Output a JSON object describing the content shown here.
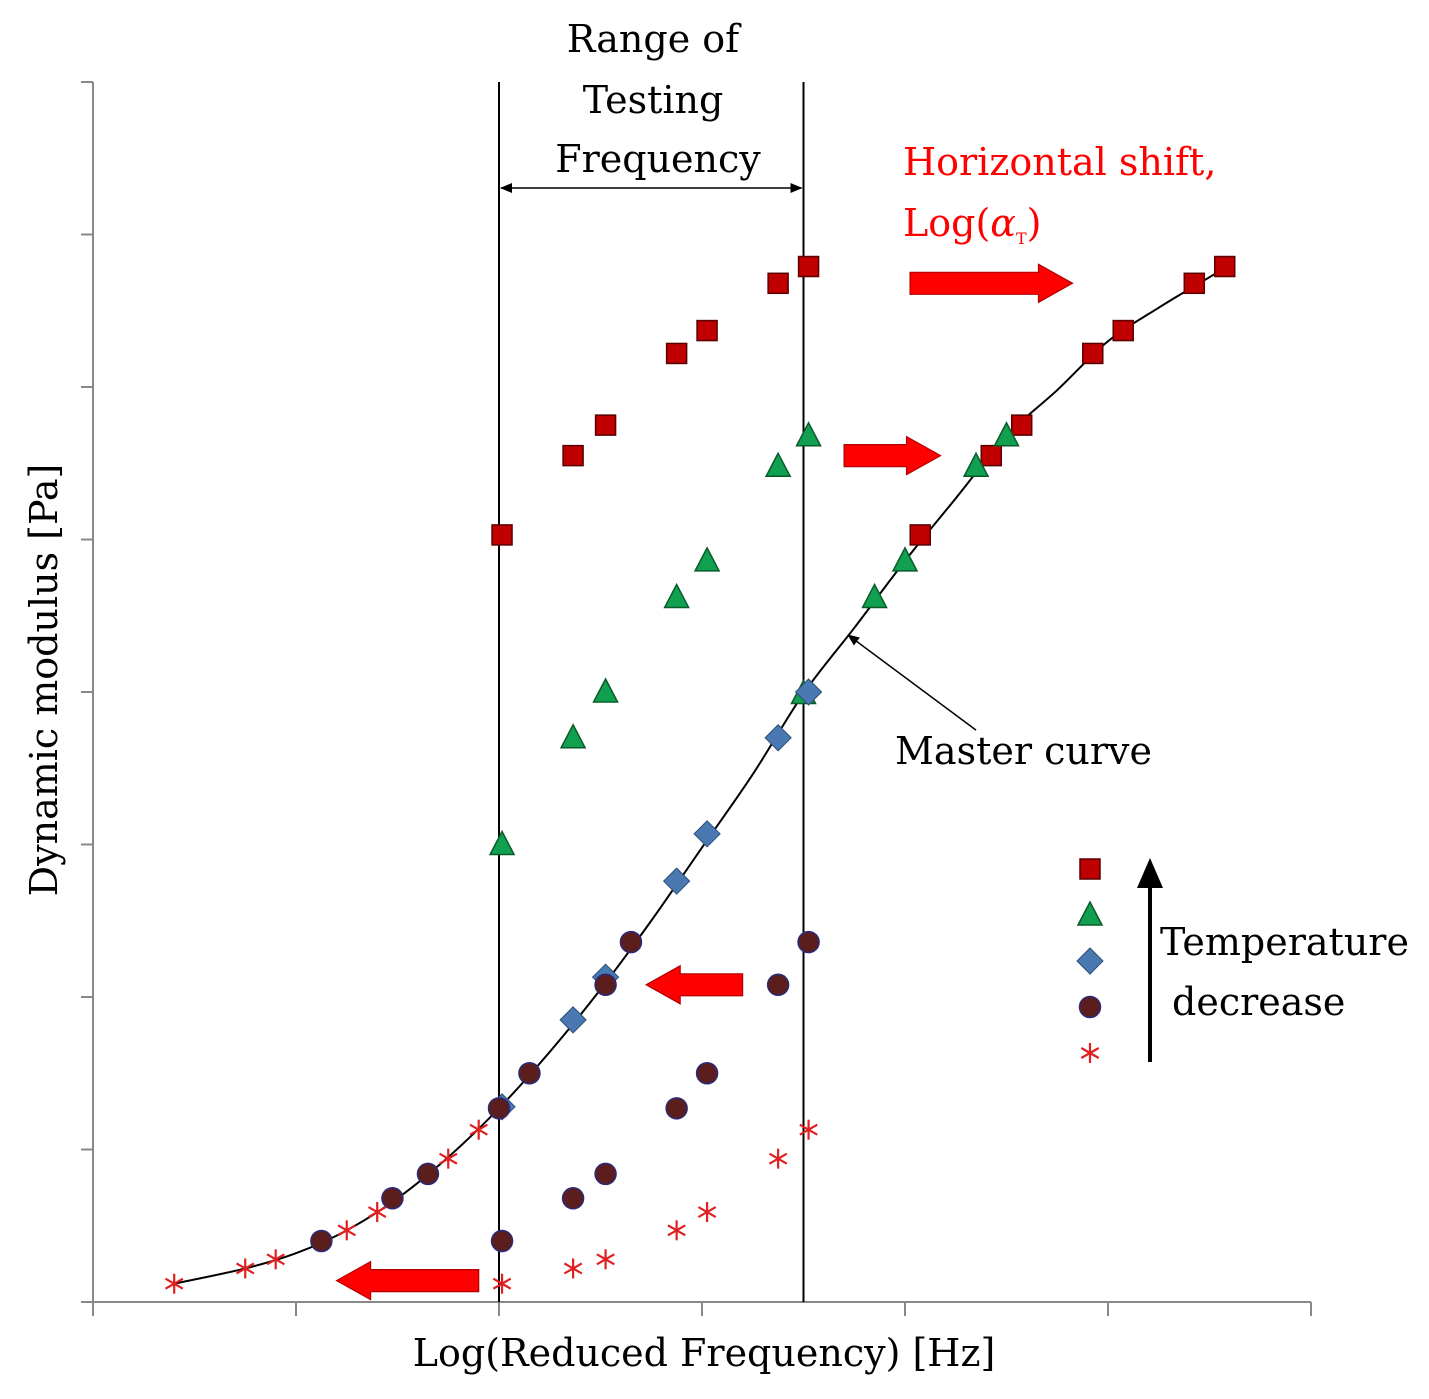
{
  "chart_data": {
    "type": "scatter",
    "title": "",
    "xlabel": "Log(Reduced Frequency) [Hz]",
    "ylabel": "Dynamic modulus [Pa]",
    "xlim": [
      0,
      12
    ],
    "ylim": [
      0,
      8
    ],
    "x_tick_count": 6,
    "y_tick_count": 8,
    "testing_range": {
      "x_min": 4,
      "x_max": 7,
      "label_lines": [
        "Range of",
        "Testing",
        "Frequency"
      ]
    },
    "series": [
      {
        "name": "square",
        "color": "#c00000",
        "marker": "square",
        "raw": [
          [
            4.03,
            5.03
          ],
          [
            4.73,
            5.55
          ],
          [
            5.05,
            5.75
          ],
          [
            5.75,
            6.22
          ],
          [
            6.05,
            6.37
          ],
          [
            6.75,
            6.68
          ],
          [
            7.05,
            6.79
          ]
        ],
        "shifted": [
          [
            8.15,
            5.03
          ],
          [
            8.85,
            5.55
          ],
          [
            9.15,
            5.75
          ],
          [
            9.85,
            6.22
          ],
          [
            10.15,
            6.37
          ],
          [
            10.85,
            6.68
          ],
          [
            11.15,
            6.79
          ]
        ]
      },
      {
        "name": "triangle",
        "color": "#10a050",
        "marker": "triangle",
        "raw": [
          [
            4.03,
            3.0
          ],
          [
            4.73,
            3.7
          ],
          [
            5.05,
            4.0
          ],
          [
            5.75,
            4.62
          ],
          [
            6.05,
            4.86
          ],
          [
            6.75,
            5.48
          ],
          [
            7.05,
            5.68
          ]
        ],
        "shifted": [
          [
            7.0,
            3.99
          ],
          [
            7.7,
            4.62
          ],
          [
            8.0,
            4.86
          ],
          [
            8.7,
            5.48
          ],
          [
            9.0,
            5.68
          ]
        ]
      },
      {
        "name": "diamond",
        "color": "#4a78b0",
        "marker": "diamond",
        "shifted": [
          [
            4.03,
            1.28
          ],
          [
            4.73,
            1.85
          ],
          [
            5.05,
            2.13
          ],
          [
            5.75,
            2.76
          ],
          [
            6.05,
            3.07
          ],
          [
            6.75,
            3.7
          ],
          [
            7.05,
            4.0
          ]
        ]
      },
      {
        "name": "circle",
        "color": "#5c1d1d",
        "marker": "circle",
        "raw": [
          [
            4.03,
            0.4
          ],
          [
            4.73,
            0.68
          ],
          [
            5.05,
            0.84
          ],
          [
            5.75,
            1.27
          ],
          [
            6.05,
            1.5
          ],
          [
            6.75,
            2.08
          ],
          [
            7.05,
            2.36
          ]
        ],
        "shifted": [
          [
            2.25,
            0.4
          ],
          [
            2.95,
            0.68
          ],
          [
            3.3,
            0.84
          ],
          [
            4.0,
            1.27
          ],
          [
            4.3,
            1.5
          ],
          [
            5.05,
            2.08
          ],
          [
            5.3,
            2.36
          ]
        ]
      },
      {
        "name": "asterisk",
        "color": "#e02020",
        "marker": "asterisk",
        "raw": [
          [
            4.03,
            0.12
          ],
          [
            4.73,
            0.22
          ],
          [
            5.05,
            0.28
          ],
          [
            5.75,
            0.47
          ],
          [
            6.05,
            0.59
          ],
          [
            6.75,
            0.94
          ],
          [
            7.05,
            1.13
          ]
        ],
        "shifted": [
          [
            0.8,
            0.12
          ],
          [
            1.5,
            0.22
          ],
          [
            1.8,
            0.28
          ],
          [
            2.5,
            0.47
          ],
          [
            2.8,
            0.59
          ],
          [
            3.5,
            0.94
          ],
          [
            3.8,
            1.13
          ]
        ]
      }
    ],
    "master_curve": [
      [
        0.8,
        0.12
      ],
      [
        1.5,
        0.22
      ],
      [
        2.0,
        0.32
      ],
      [
        2.5,
        0.47
      ],
      [
        3.0,
        0.68
      ],
      [
        3.5,
        0.95
      ],
      [
        4.0,
        1.27
      ],
      [
        4.5,
        1.64
      ],
      [
        5.0,
        2.05
      ],
      [
        5.5,
        2.5
      ],
      [
        6.0,
        2.98
      ],
      [
        6.5,
        3.46
      ],
      [
        7.0,
        3.99
      ],
      [
        7.5,
        4.42
      ],
      [
        8.0,
        4.86
      ],
      [
        8.5,
        5.27
      ],
      [
        9.0,
        5.68
      ],
      [
        9.5,
        5.98
      ],
      [
        10.0,
        6.3
      ],
      [
        10.5,
        6.52
      ],
      [
        11.0,
        6.72
      ],
      [
        11.2,
        6.8
      ]
    ],
    "annotations": {
      "shift_label_line1": "Horizontal shift,",
      "shift_label_line2_prefix": "Log(",
      "shift_label_symbol": "α",
      "shift_label_subscript": "T",
      "shift_label_suffix": ")",
      "master_curve_label": "Master curve",
      "temperature_label_line1": "Temperature",
      "temperature_label_line2": "decrease"
    },
    "shift_arrows": [
      {
        "direction": "right",
        "x_from": 8.05,
        "x_to": 9.65,
        "y": 6.68
      },
      {
        "direction": "right",
        "x_from": 7.4,
        "x_to": 8.35,
        "y": 5.55
      },
      {
        "direction": "left",
        "x_from": 6.4,
        "x_to": 5.45,
        "y": 2.08
      },
      {
        "direction": "left",
        "x_from": 3.8,
        "x_to": 2.4,
        "y": 0.14
      }
    ],
    "master_curve_pointer": {
      "x_from": 8.7,
      "y_from": 3.75,
      "x_to": 7.4,
      "y_to": 4.4
    },
    "legend": {
      "position": "right",
      "order": [
        "square",
        "triangle",
        "diamond",
        "circle",
        "asterisk"
      ]
    }
  }
}
